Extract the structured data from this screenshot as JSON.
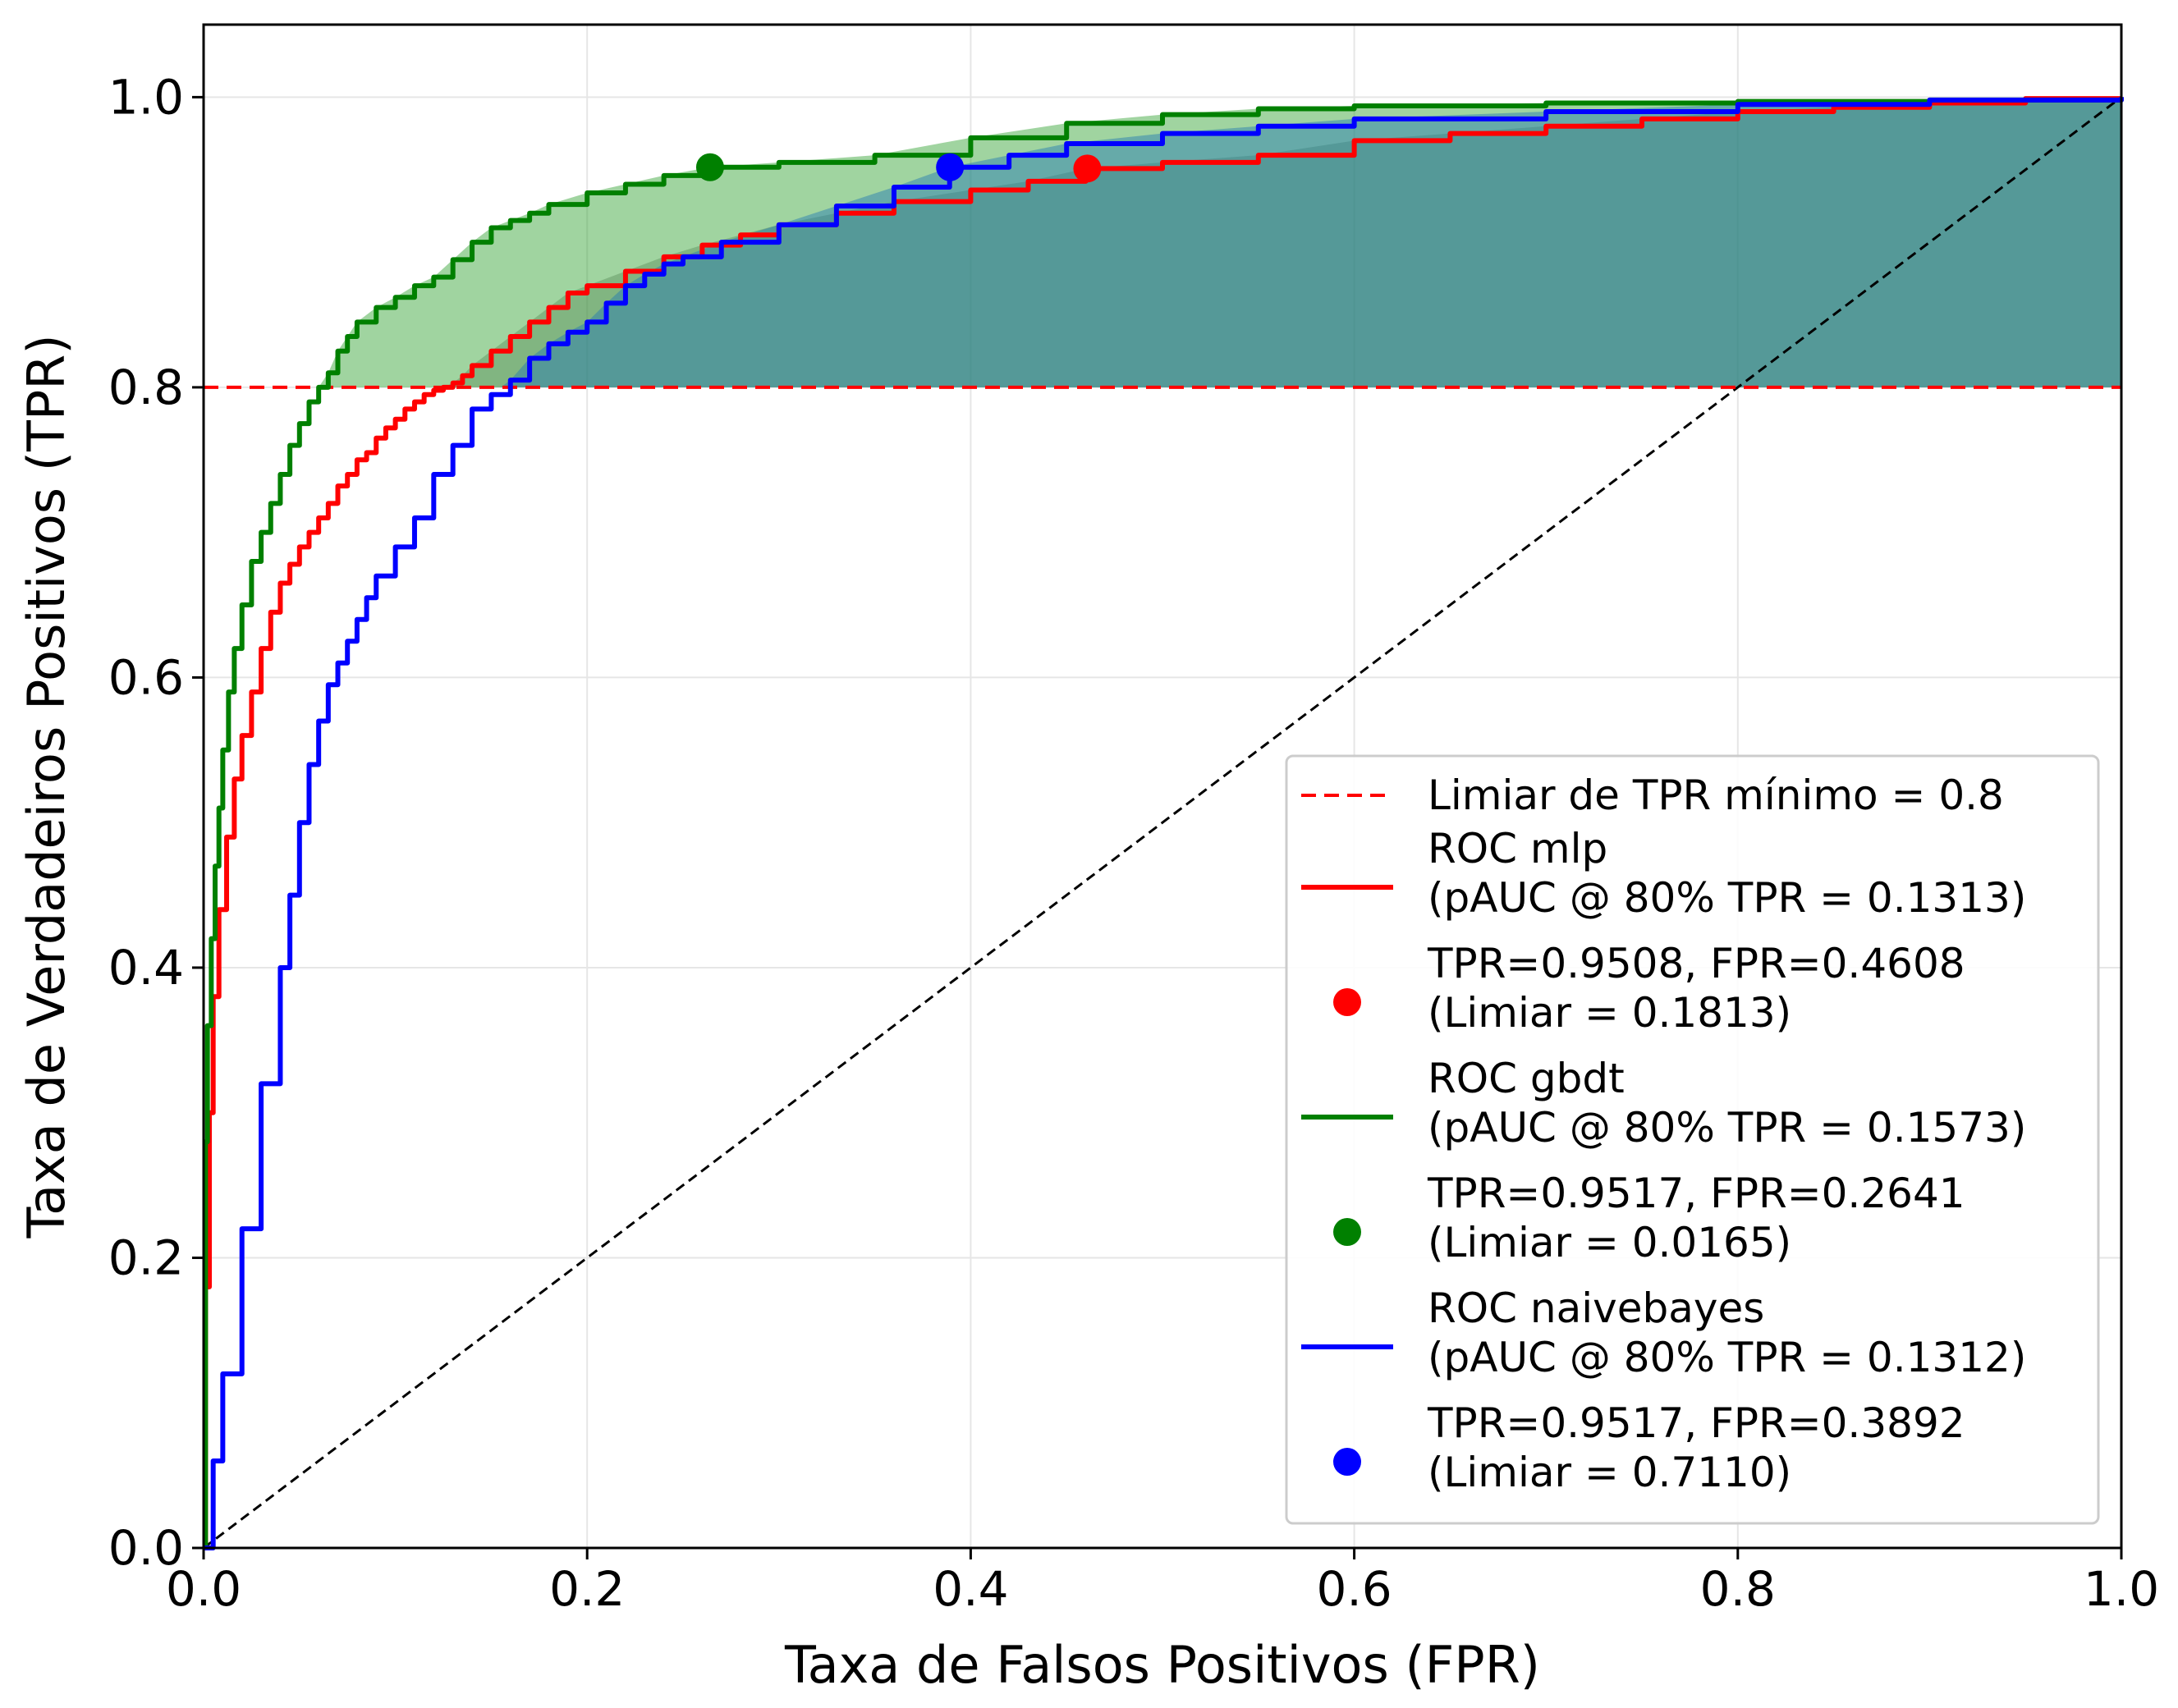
{
  "chart_data": {
    "type": "line",
    "title": "",
    "xlabel": "Taxa de Falsos Positivos (FPR)",
    "ylabel": "Taxa de Verdadeiros Positivos (TPR)",
    "xlim": [
      0.0,
      1.0
    ],
    "ylim": [
      0.0,
      1.05
    ],
    "xticks": [
      "0.0",
      "0.2",
      "0.4",
      "0.6",
      "0.8",
      "1.0"
    ],
    "yticks": [
      "0.0",
      "0.2",
      "0.4",
      "0.6",
      "0.8",
      "1.0"
    ],
    "grid": true,
    "legend_position": "lower right",
    "threshold": {
      "name": "Limiar de TPR mínimo = 0.8",
      "tpr": 0.8,
      "color": "#ff0000",
      "style": "dashed"
    },
    "diagonal": {
      "x": [
        0,
        1
      ],
      "y": [
        0,
        1
      ],
      "color": "#000000",
      "style": "dashed"
    },
    "series": [
      {
        "name": "ROC mlp",
        "pauc_label": "(pAUC @ 80% TPR = 0.1313)",
        "color": "#ff0000",
        "fill_color": "#808080",
        "x": [
          0.0,
          0.001,
          0.003,
          0.005,
          0.008,
          0.012,
          0.016,
          0.02,
          0.025,
          0.03,
          0.035,
          0.04,
          0.045,
          0.05,
          0.055,
          0.06,
          0.065,
          0.07,
          0.075,
          0.08,
          0.085,
          0.09,
          0.095,
          0.1,
          0.105,
          0.11,
          0.115,
          0.12,
          0.125,
          0.13,
          0.135,
          0.14,
          0.15,
          0.16,
          0.17,
          0.18,
          0.19,
          0.2,
          0.22,
          0.24,
          0.26,
          0.28,
          0.3,
          0.33,
          0.36,
          0.4,
          0.43,
          0.46,
          0.5,
          0.55,
          0.6,
          0.65,
          0.7,
          0.75,
          0.8,
          0.85,
          0.9,
          0.95,
          1.0
        ],
        "y": [
          0.0,
          0.18,
          0.3,
          0.38,
          0.44,
          0.49,
          0.53,
          0.56,
          0.59,
          0.62,
          0.645,
          0.665,
          0.678,
          0.69,
          0.7,
          0.71,
          0.72,
          0.732,
          0.74,
          0.75,
          0.755,
          0.765,
          0.772,
          0.778,
          0.785,
          0.79,
          0.795,
          0.798,
          0.8,
          0.803,
          0.808,
          0.815,
          0.825,
          0.835,
          0.845,
          0.855,
          0.865,
          0.87,
          0.88,
          0.89,
          0.898,
          0.905,
          0.912,
          0.92,
          0.928,
          0.936,
          0.942,
          0.9508,
          0.955,
          0.96,
          0.97,
          0.975,
          0.98,
          0.985,
          0.99,
          0.993,
          0.996,
          0.999,
          1.0
        ]
      },
      {
        "name": "ROC gbdt",
        "pauc_label": "(pAUC @ 80% TPR = 0.1573)",
        "color": "#008000",
        "fill_color": "#2ca02c",
        "x": [
          0.0,
          0.001,
          0.002,
          0.004,
          0.006,
          0.008,
          0.01,
          0.013,
          0.016,
          0.02,
          0.025,
          0.03,
          0.035,
          0.04,
          0.045,
          0.05,
          0.055,
          0.06,
          0.065,
          0.07,
          0.075,
          0.08,
          0.09,
          0.1,
          0.11,
          0.12,
          0.13,
          0.14,
          0.15,
          0.16,
          0.17,
          0.18,
          0.2,
          0.22,
          0.24,
          0.264,
          0.3,
          0.35,
          0.4,
          0.45,
          0.5,
          0.55,
          0.6,
          0.7,
          0.8,
          0.9,
          1.0
        ],
        "y": [
          0.0,
          0.28,
          0.36,
          0.42,
          0.47,
          0.51,
          0.55,
          0.59,
          0.62,
          0.65,
          0.68,
          0.7,
          0.72,
          0.74,
          0.76,
          0.775,
          0.79,
          0.8,
          0.81,
          0.825,
          0.835,
          0.845,
          0.855,
          0.862,
          0.87,
          0.876,
          0.888,
          0.9,
          0.91,
          0.915,
          0.92,
          0.926,
          0.934,
          0.94,
          0.946,
          0.9517,
          0.955,
          0.96,
          0.972,
          0.982,
          0.988,
          0.992,
          0.994,
          0.996,
          0.997,
          0.998,
          1.0
        ]
      },
      {
        "name": "ROC naivebayes",
        "pauc_label": "(pAUC @ 80% TPR = 0.1312)",
        "color": "#0000ff",
        "fill_color": "#1f77b4",
        "x": [
          0.0,
          0.005,
          0.01,
          0.02,
          0.03,
          0.04,
          0.045,
          0.05,
          0.055,
          0.06,
          0.065,
          0.07,
          0.075,
          0.08,
          0.085,
          0.09,
          0.1,
          0.11,
          0.12,
          0.13,
          0.14,
          0.15,
          0.16,
          0.17,
          0.18,
          0.19,
          0.2,
          0.21,
          0.22,
          0.23,
          0.24,
          0.25,
          0.27,
          0.3,
          0.33,
          0.36,
          0.389,
          0.42,
          0.45,
          0.5,
          0.55,
          0.6,
          0.7,
          0.8,
          0.9,
          1.0
        ],
        "y": [
          0.0,
          0.06,
          0.12,
          0.22,
          0.32,
          0.4,
          0.45,
          0.5,
          0.54,
          0.57,
          0.595,
          0.61,
          0.625,
          0.64,
          0.655,
          0.67,
          0.69,
          0.71,
          0.74,
          0.76,
          0.785,
          0.795,
          0.805,
          0.82,
          0.83,
          0.838,
          0.845,
          0.858,
          0.87,
          0.878,
          0.885,
          0.89,
          0.9,
          0.912,
          0.925,
          0.938,
          0.9517,
          0.96,
          0.968,
          0.975,
          0.98,
          0.985,
          0.99,
          0.995,
          0.998,
          1.0
        ]
      }
    ],
    "markers": [
      {
        "series": "ROC mlp",
        "label_line1": "TPR=0.9508, FPR=0.4608",
        "label_line2": "(Limiar = 0.1813)",
        "fpr": 0.4608,
        "tpr": 0.9508,
        "color": "#ff0000"
      },
      {
        "series": "ROC gbdt",
        "label_line1": "TPR=0.9517, FPR=0.2641",
        "label_line2": "(Limiar = 0.0165)",
        "fpr": 0.2641,
        "tpr": 0.9517,
        "color": "#008000"
      },
      {
        "series": "ROC naivebayes",
        "label_line1": "TPR=0.9517, FPR=0.3892",
        "label_line2": "(Limiar = 0.7110)",
        "fpr": 0.3892,
        "tpr": 0.9517,
        "color": "#0000ff"
      }
    ]
  }
}
